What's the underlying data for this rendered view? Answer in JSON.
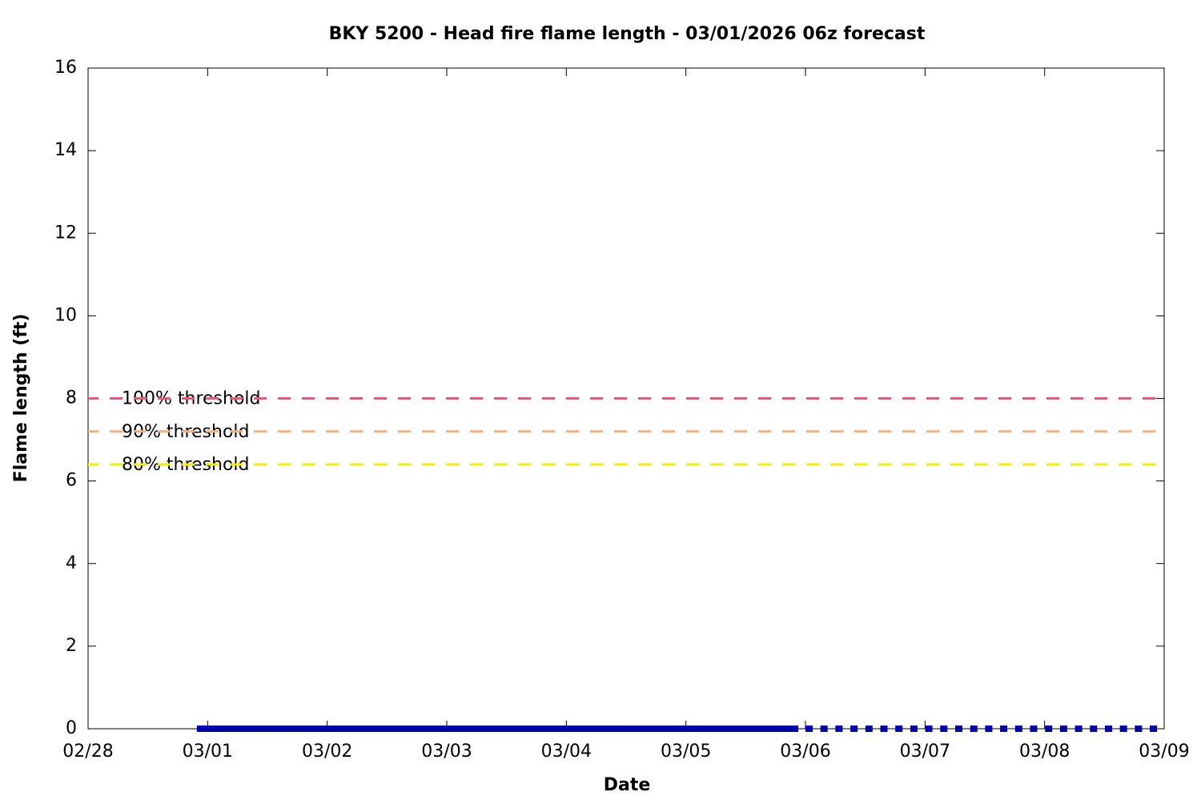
{
  "chart_data": {
    "type": "line",
    "title": "BKY 5200 - Head fire flame length - 03/01/2026 06z forecast",
    "x_label": "Date",
    "y_label": "Flame length (ft)",
    "xlim": [
      0,
      9
    ],
    "xticks": [
      {
        "value": 0,
        "label": "02/28"
      },
      {
        "value": 1,
        "label": "03/01"
      },
      {
        "value": 2,
        "label": "03/02"
      },
      {
        "value": 3,
        "label": "03/03"
      },
      {
        "value": 4,
        "label": "03/04"
      },
      {
        "value": 5,
        "label": "03/05"
      },
      {
        "value": 6,
        "label": "03/06"
      },
      {
        "value": 7,
        "label": "03/07"
      },
      {
        "value": 8,
        "label": "03/08"
      },
      {
        "value": 9,
        "label": "03/09"
      }
    ],
    "ylim": [
      0,
      16
    ],
    "yticks": [
      0,
      2,
      4,
      6,
      8,
      10,
      12,
      14,
      16
    ],
    "series": [
      {
        "color": "#0000aa",
        "style": "solid",
        "x": [
          0.91,
          5.94
        ],
        "values": [
          0,
          0
        ]
      },
      {
        "color": "#0000aa",
        "style": "dotted",
        "x": [
          6.0,
          9.0
        ],
        "values": [
          0,
          0
        ]
      }
    ],
    "thresholds": [
      {
        "label": "100% threshold",
        "value": 8,
        "color": "#d9607a"
      },
      {
        "label": "90% threshold",
        "value": 7.2,
        "color": "#f2b182"
      },
      {
        "label": "80% threshold",
        "value": 6.4,
        "color": "#f0f000"
      }
    ]
  }
}
